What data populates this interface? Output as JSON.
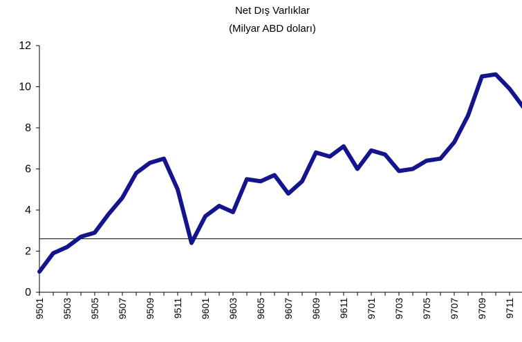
{
  "chart_data": {
    "type": "line",
    "title": "Net Dış Varlıklar",
    "subtitle": "(Milyar ABD doları)",
    "categories": [
      "9501",
      null,
      "9503",
      null,
      "9505",
      null,
      "9507",
      null,
      "9509",
      null,
      "9511",
      null,
      "9601",
      null,
      "9603",
      null,
      "9605",
      null,
      "9607",
      null,
      "9609",
      null,
      "9611",
      null,
      "9701",
      null,
      "9703",
      null,
      "9705",
      null,
      "9707",
      null,
      "9709",
      null,
      "9711",
      null
    ],
    "series": [
      {
        "color": "#14148c",
        "values": [
          1.0,
          1.9,
          2.2,
          2.7,
          2.9,
          3.8,
          4.6,
          5.8,
          6.3,
          6.5,
          5.0,
          2.4,
          3.7,
          4.2,
          3.9,
          5.5,
          5.4,
          5.7,
          4.8,
          5.4,
          6.8,
          6.6,
          7.1,
          6.0,
          6.9,
          6.7,
          5.9,
          6.0,
          6.4,
          6.5,
          7.3,
          8.6,
          10.5,
          10.6,
          9.9,
          9.0
        ]
      }
    ],
    "ylim": [
      0,
      12
    ],
    "yticks": [
      0,
      2,
      4,
      6,
      8,
      10,
      12
    ],
    "reference_line": 2.6
  }
}
